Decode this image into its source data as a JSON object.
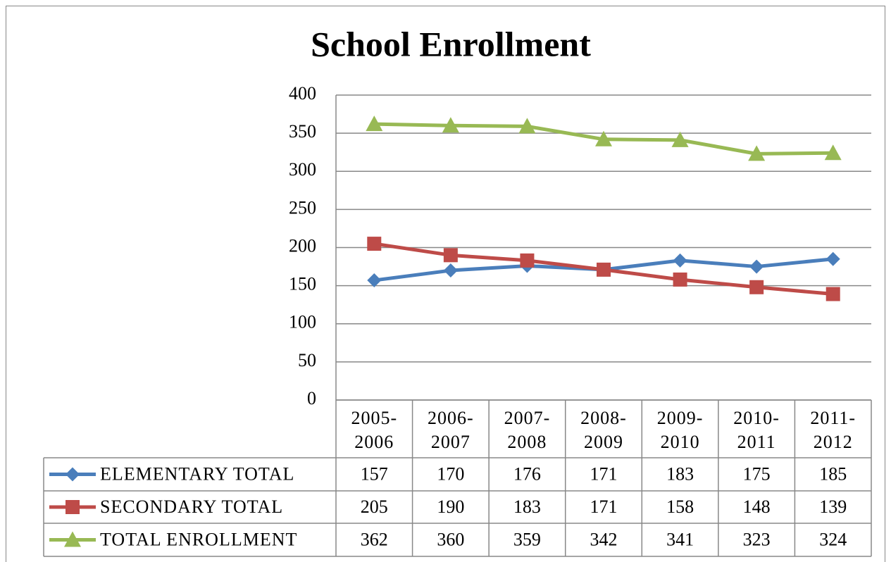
{
  "chart_data": {
    "type": "line",
    "title": "School Enrollment",
    "categories": [
      "2005-2006",
      "2006-2007",
      "2007-2008",
      "2008-2009",
      "2009-2010",
      "2010-2011",
      "2011-2012"
    ],
    "series": [
      {
        "name": "ELEMENTARY TOTAL",
        "color": "#4a7ebb",
        "marker": "diamond",
        "values": [
          157,
          170,
          176,
          171,
          183,
          175,
          185
        ]
      },
      {
        "name": "SECONDARY TOTAL",
        "color": "#be4b48",
        "marker": "square",
        "values": [
          205,
          190,
          183,
          171,
          158,
          148,
          139
        ]
      },
      {
        "name": "TOTAL ENROLLMENT",
        "color": "#98b954",
        "marker": "triangle",
        "values": [
          362,
          360,
          359,
          342,
          341,
          323,
          324
        ]
      }
    ],
    "ylim": [
      0,
      400
    ],
    "yticks": [
      0,
      50,
      100,
      150,
      200,
      250,
      300,
      350,
      400
    ],
    "grid": true,
    "data_table": true
  }
}
